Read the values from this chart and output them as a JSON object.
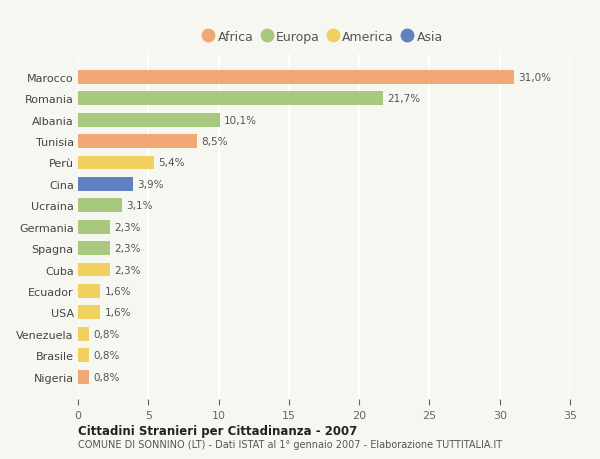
{
  "countries": [
    "Marocco",
    "Romania",
    "Albania",
    "Tunisia",
    "Perù",
    "Cina",
    "Ucraina",
    "Germania",
    "Spagna",
    "Cuba",
    "Ecuador",
    "USA",
    "Venezuela",
    "Brasile",
    "Nigeria"
  ],
  "values": [
    31.0,
    21.7,
    10.1,
    8.5,
    5.4,
    3.9,
    3.1,
    2.3,
    2.3,
    2.3,
    1.6,
    1.6,
    0.8,
    0.8,
    0.8
  ],
  "labels": [
    "31,0%",
    "21,7%",
    "10,1%",
    "8,5%",
    "5,4%",
    "3,9%",
    "3,1%",
    "2,3%",
    "2,3%",
    "2,3%",
    "1,6%",
    "1,6%",
    "0,8%",
    "0,8%",
    "0,8%"
  ],
  "continents": [
    "Africa",
    "Europa",
    "Europa",
    "Africa",
    "America",
    "Asia",
    "Europa",
    "Europa",
    "Europa",
    "America",
    "America",
    "America",
    "America",
    "America",
    "Africa"
  ],
  "colors": {
    "Africa": "#F0A875",
    "Europa": "#A8C880",
    "America": "#F0D060",
    "Asia": "#6080C0"
  },
  "legend_order": [
    "Africa",
    "Europa",
    "America",
    "Asia"
  ],
  "title": "Cittadini Stranieri per Cittadinanza - 2007",
  "subtitle": "COMUNE DI SONNINO (LT) - Dati ISTAT al 1° gennaio 2007 - Elaborazione TUTTITALIA.IT",
  "xlim": [
    0,
    35
  ],
  "xticks": [
    0,
    5,
    10,
    15,
    20,
    25,
    30,
    35
  ],
  "background_color": "#f7f7f2",
  "plot_bg": "#f7f7f2",
  "grid_color": "#ffffff"
}
